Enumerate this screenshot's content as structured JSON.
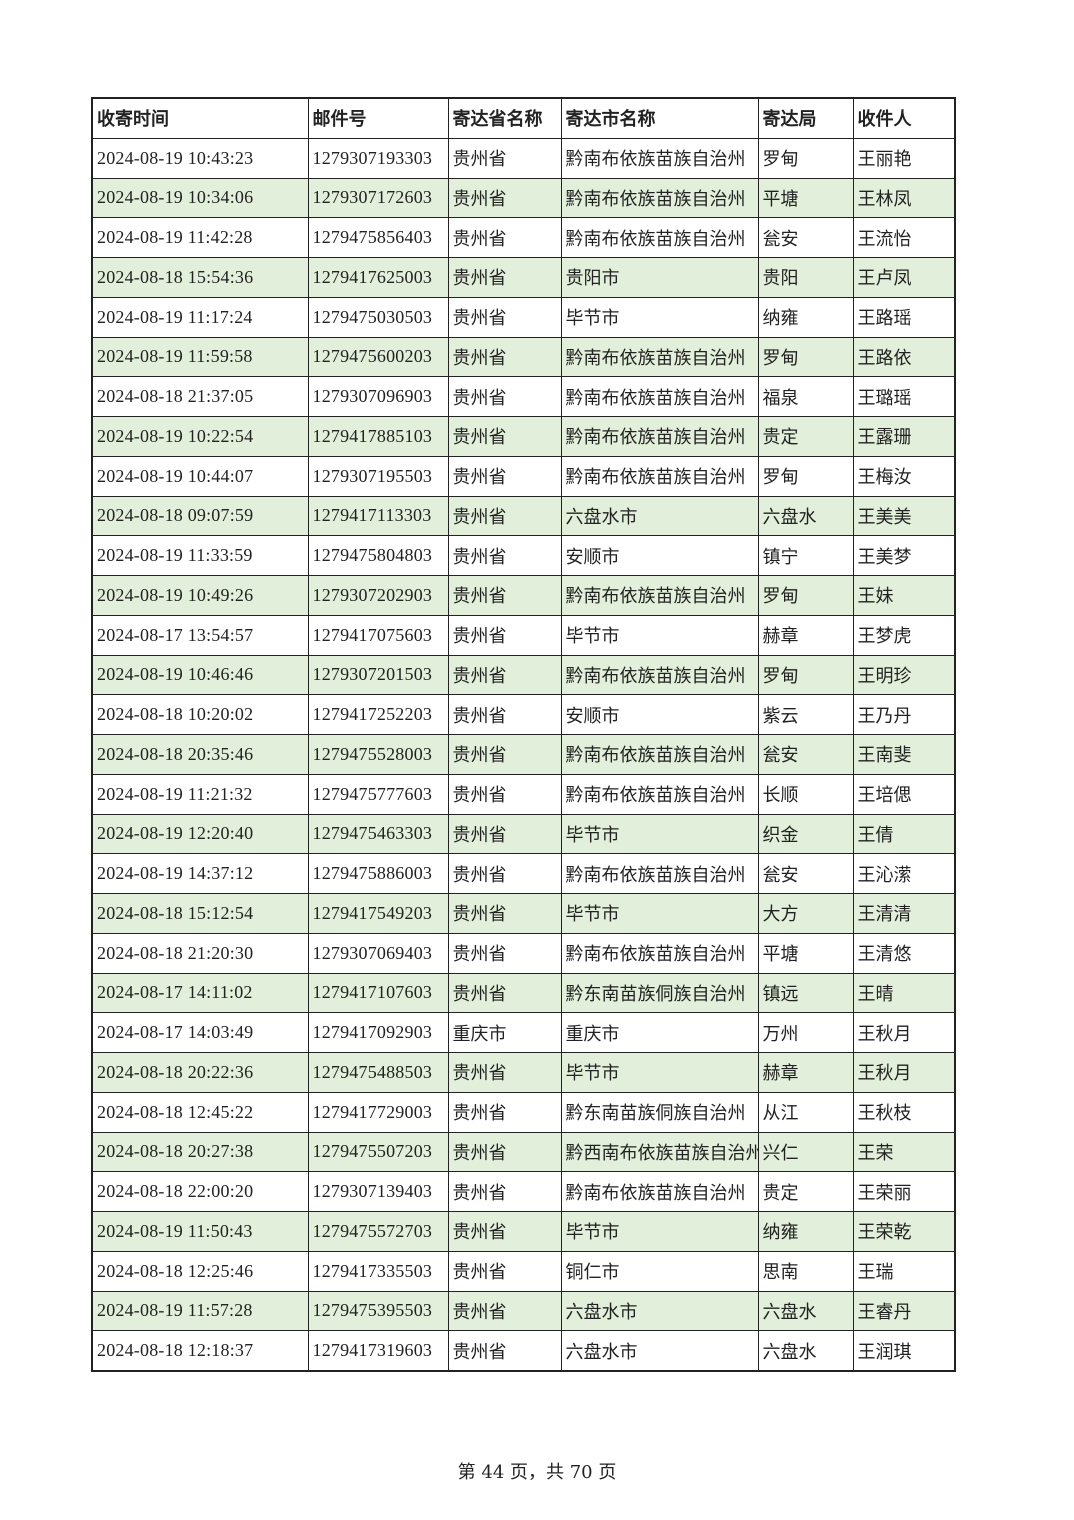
{
  "table": {
    "headers": [
      "收寄时间",
      "邮件号",
      "寄达省名称",
      "寄达市名称",
      "寄达局",
      "收件人"
    ],
    "row_fill_color": "#E2EFDA",
    "rows": [
      [
        "2024-08-19 10:43:23",
        "1279307193303",
        "贵州省",
        "黔南布依族苗族自治州",
        "罗甸",
        "王丽艳"
      ],
      [
        "2024-08-19 10:34:06",
        "1279307172603",
        "贵州省",
        "黔南布依族苗族自治州",
        "平塘",
        "王林凤"
      ],
      [
        "2024-08-19 11:42:28",
        "1279475856403",
        "贵州省",
        "黔南布依族苗族自治州",
        "瓮安",
        "王流怡"
      ],
      [
        "2024-08-18 15:54:36",
        "1279417625003",
        "贵州省",
        "贵阳市",
        "贵阳",
        "王卢凤"
      ],
      [
        "2024-08-19 11:17:24",
        "1279475030503",
        "贵州省",
        "毕节市",
        "纳雍",
        "王路瑶"
      ],
      [
        "2024-08-19 11:59:58",
        "1279475600203",
        "贵州省",
        "黔南布依族苗族自治州",
        "罗甸",
        "王路依"
      ],
      [
        "2024-08-18 21:37:05",
        "1279307096903",
        "贵州省",
        "黔南布依族苗族自治州",
        "福泉",
        "王璐瑶"
      ],
      [
        "2024-08-19 10:22:54",
        "1279417885103",
        "贵州省",
        "黔南布依族苗族自治州",
        "贵定",
        "王露珊"
      ],
      [
        "2024-08-19 10:44:07",
        "1279307195503",
        "贵州省",
        "黔南布依族苗族自治州",
        "罗甸",
        "王梅汝"
      ],
      [
        "2024-08-18 09:07:59",
        "1279417113303",
        "贵州省",
        "六盘水市",
        "六盘水",
        "王美美"
      ],
      [
        "2024-08-19 11:33:59",
        "1279475804803",
        "贵州省",
        "安顺市",
        "镇宁",
        "王美梦"
      ],
      [
        "2024-08-19 10:49:26",
        "1279307202903",
        "贵州省",
        "黔南布依族苗族自治州",
        "罗甸",
        "王妹"
      ],
      [
        "2024-08-17 13:54:57",
        "1279417075603",
        "贵州省",
        "毕节市",
        "赫章",
        "王梦虎"
      ],
      [
        "2024-08-19 10:46:46",
        "1279307201503",
        "贵州省",
        "黔南布依族苗族自治州",
        "罗甸",
        "王明珍"
      ],
      [
        "2024-08-18 10:20:02",
        "1279417252203",
        "贵州省",
        "安顺市",
        "紫云",
        "王乃丹"
      ],
      [
        "2024-08-18 20:35:46",
        "1279475528003",
        "贵州省",
        "黔南布依族苗族自治州",
        "瓮安",
        "王南斐"
      ],
      [
        "2024-08-19 11:21:32",
        "1279475777603",
        "贵州省",
        "黔南布依族苗族自治州",
        "长顺",
        "王培偲"
      ],
      [
        "2024-08-19 12:20:40",
        "1279475463303",
        "贵州省",
        "毕节市",
        "织金",
        "王倩"
      ],
      [
        "2024-08-19 14:37:12",
        "1279475886003",
        "贵州省",
        "黔南布依族苗族自治州",
        "瓮安",
        "王沁潆"
      ],
      [
        "2024-08-18 15:12:54",
        "1279417549203",
        "贵州省",
        "毕节市",
        "大方",
        "王清清"
      ],
      [
        "2024-08-18 21:20:30",
        "1279307069403",
        "贵州省",
        "黔南布依族苗族自治州",
        "平塘",
        "王清悠"
      ],
      [
        "2024-08-17 14:11:02",
        "1279417107603",
        "贵州省",
        "黔东南苗族侗族自治州",
        "镇远",
        "王晴"
      ],
      [
        "2024-08-17 14:03:49",
        "1279417092903",
        "重庆市",
        "重庆市",
        "万州",
        "王秋月"
      ],
      [
        "2024-08-18 20:22:36",
        "1279475488503",
        "贵州省",
        "毕节市",
        "赫章",
        "王秋月"
      ],
      [
        "2024-08-18 12:45:22",
        "1279417729003",
        "贵州省",
        "黔东南苗族侗族自治州",
        "从江",
        "王秋枝"
      ],
      [
        "2024-08-18 20:27:38",
        "1279475507203",
        "贵州省",
        "黔西南布依族苗族自治州",
        "兴仁",
        "王荣"
      ],
      [
        "2024-08-18 22:00:20",
        "1279307139403",
        "贵州省",
        "黔南布依族苗族自治州",
        "贵定",
        "王荣丽"
      ],
      [
        "2024-08-19 11:50:43",
        "1279475572703",
        "贵州省",
        "毕节市",
        "纳雍",
        "王荣乾"
      ],
      [
        "2024-08-18 12:25:46",
        "1279417335503",
        "贵州省",
        "铜仁市",
        "思南",
        "王瑞"
      ],
      [
        "2024-08-19 11:57:28",
        "1279475395503",
        "贵州省",
        "六盘水市",
        "六盘水",
        "王睿丹"
      ],
      [
        "2024-08-18 12:18:37",
        "1279417319603",
        "贵州省",
        "六盘水市",
        "六盘水",
        "王润琪"
      ]
    ]
  },
  "footer": {
    "page_label": "第 44 页，共 70 页"
  }
}
